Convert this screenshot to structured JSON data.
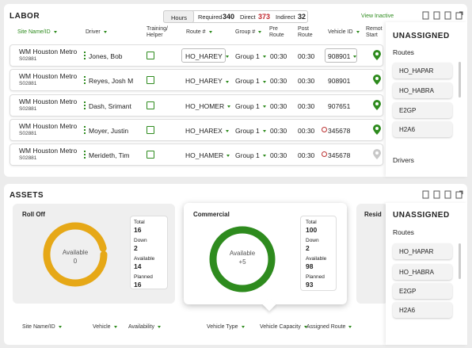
{
  "labor": {
    "title": "LABOR",
    "tabs": [
      {
        "label": "Hours"
      },
      {
        "label": "Required",
        "value": 340
      },
      {
        "label": "Direct",
        "value": 373
      },
      {
        "label": "Indirect",
        "value": 32
      }
    ],
    "view_inactive": "View Inactive",
    "columns": [
      "Site Name/ID",
      "Driver",
      "Training/ Helper",
      "Route #",
      "Group #",
      "Pre Route",
      "Post Route",
      "Vehicle ID",
      "Remot Start"
    ],
    "rows": [
      {
        "site": "WM Houston Metro",
        "site_id": "S02881",
        "driver": "Jones, Bob",
        "route": "HO_HAREY",
        "group": "Group 1",
        "pre": "00:30",
        "post": "00:30",
        "vehicle": "908901"
      },
      {
        "site": "WM Houston Metro",
        "site_id": "S02881",
        "driver": "Reyes, Josh M",
        "route": "HO_HAREY",
        "group": "Group 1",
        "pre": "00:30",
        "post": "00:30",
        "vehicle": "908901"
      },
      {
        "site": "WM Houston Metro",
        "site_id": "S02881",
        "driver": "Dash, Srimant",
        "route": "HO_HOMER",
        "group": "Group 1",
        "pre": "00:30",
        "post": "00:30",
        "vehicle": "907651"
      },
      {
        "site": "WM Houston Metro",
        "site_id": "S02881",
        "driver": "Moyer, Justin",
        "route": "HO_HAREX",
        "group": "Group 1",
        "pre": "00:30",
        "post": "00:30",
        "vehicle": "345678"
      },
      {
        "site": "WM Houston Metro",
        "site_id": "S02881",
        "driver": "Merideth, Tim",
        "route": "HO_HAMER",
        "group": "Group 1",
        "pre": "00:30",
        "post": "00:30",
        "vehicle": "345678"
      }
    ]
  },
  "labor_unassigned": {
    "title": "UNASSIGNED",
    "routes_label": "Routes",
    "routes": [
      "HO_HAPAR",
      "HO_HABRA",
      "E2GP",
      "H2A6"
    ],
    "drivers_label": "Drivers"
  },
  "assets": {
    "title": "ASSETS",
    "cards": [
      {
        "title": "Roll Off",
        "donut_label": "Available",
        "donut_value": 0,
        "stats": [
          {
            "label": "Total",
            "value": 16
          },
          {
            "label": "Down",
            "value": 2
          },
          {
            "label": "Available",
            "value": 14
          },
          {
            "label": "Planned",
            "value": 16
          }
        ]
      },
      {
        "title": "Commercial",
        "donut_label": "Available",
        "donut_value": "+5",
        "stats": [
          {
            "label": "Total",
            "value": 100
          },
          {
            "label": "Down",
            "value": 2
          },
          {
            "label": "Available",
            "value": 98
          },
          {
            "label": "Planned",
            "value": 93
          }
        ]
      },
      {
        "title": "Resid"
      }
    ],
    "columns": [
      "Site Name/ID",
      "Vehicle",
      "Availability",
      "Vehicle Type",
      "Vehicle Capacity",
      "Assigned Route"
    ]
  },
  "assets_unassigned": {
    "title": "UNASSIGNED",
    "routes_label": "Routes",
    "routes": [
      "HO_HAPAR",
      "HO_HABRA",
      "E2GP",
      "H2A6"
    ]
  }
}
